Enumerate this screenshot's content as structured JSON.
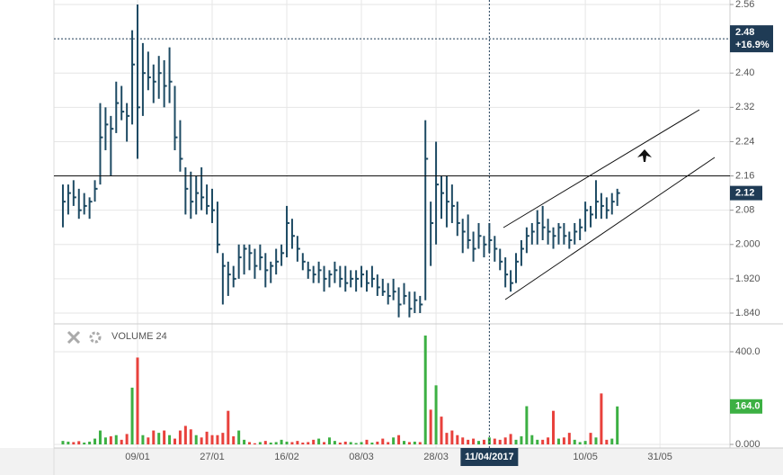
{
  "chart_data": {
    "type": "ohlc",
    "categories": [
      null,
      null,
      null,
      null,
      null,
      null,
      null,
      null,
      null,
      null,
      null,
      null,
      null,
      null,
      "09/01",
      null,
      null,
      null,
      null,
      null,
      null,
      null,
      null,
      null,
      null,
      null,
      null,
      null,
      "27/01",
      null,
      null,
      null,
      null,
      null,
      null,
      null,
      null,
      null,
      null,
      null,
      null,
      null,
      "16/02",
      null,
      null,
      null,
      null,
      null,
      null,
      null,
      null,
      null,
      null,
      null,
      null,
      null,
      "08/03",
      null,
      null,
      null,
      null,
      null,
      null,
      null,
      null,
      null,
      null,
      null,
      null,
      null,
      "28/03",
      null,
      null,
      null,
      null,
      null,
      null,
      null,
      null,
      null,
      "11/04/2017",
      null,
      null,
      null,
      null,
      null,
      null,
      null,
      null,
      null,
      null,
      null,
      null,
      null,
      null,
      null,
      null,
      null,
      "10/05",
      null,
      null,
      null,
      null,
      null,
      null,
      null,
      null,
      null,
      null,
      null,
      null,
      null,
      "31/05",
      null,
      null,
      null,
      null,
      null,
      null,
      null,
      null,
      null,
      null,
      null,
      null
    ],
    "high": [
      2.14,
      2.14,
      2.15,
      2.13,
      2.12,
      2.11,
      2.15,
      2.33,
      2.32,
      2.3,
      2.38,
      2.37,
      2.33,
      2.5,
      2.56,
      2.47,
      2.45,
      2.42,
      2.44,
      2.43,
      2.46,
      2.37,
      2.29,
      2.18,
      2.17,
      2.16,
      2.18,
      2.14,
      2.13,
      2.1,
      1.98,
      1.96,
      1.95,
      2.0,
      2.0,
      2.0,
      1.99,
      2.0,
      1.98,
      1.96,
      1.99,
      2.0,
      2.09,
      2.06,
      2.02,
      1.98,
      1.96,
      1.95,
      1.96,
      1.95,
      1.94,
      1.96,
      1.95,
      1.95,
      1.94,
      1.94,
      1.95,
      1.94,
      1.95,
      1.93,
      1.92,
      1.91,
      1.92,
      1.9,
      1.91,
      1.89,
      1.89,
      1.88,
      2.29,
      2.1,
      2.24,
      2.16,
      2.16,
      2.14,
      2.1,
      2.06,
      2.07,
      2.03,
      2.05,
      2.02,
      2.05,
      2.02,
      1.99,
      1.97,
      1.94,
      1.98,
      2.01,
      2.04,
      2.05,
      2.08,
      2.09,
      2.06,
      2.04,
      2.05,
      2.05,
      2.03,
      2.05,
      2.06,
      2.1,
      2.09,
      2.15,
      2.12,
      2.11,
      2.12,
      2.13,
      null,
      null,
      null,
      null,
      null,
      null,
      null,
      null,
      null,
      null,
      null,
      null,
      null,
      null,
      null,
      null,
      null,
      null,
      null,
      null
    ],
    "low": [
      2.04,
      2.07,
      2.09,
      2.06,
      2.07,
      2.06,
      2.1,
      2.14,
      2.22,
      2.16,
      2.26,
      2.29,
      2.24,
      2.28,
      2.2,
      2.3,
      2.36,
      2.33,
      2.34,
      2.32,
      2.33,
      2.22,
      2.17,
      2.07,
      2.06,
      2.07,
      2.08,
      2.07,
      2.05,
      1.98,
      1.86,
      1.88,
      1.9,
      1.92,
      1.93,
      1.94,
      1.92,
      1.94,
      1.9,
      1.91,
      1.93,
      1.95,
      1.97,
      1.99,
      1.96,
      1.94,
      1.92,
      1.91,
      1.91,
      1.89,
      1.9,
      1.91,
      1.9,
      1.89,
      1.9,
      1.89,
      1.9,
      1.89,
      1.9,
      1.88,
      1.88,
      1.86,
      1.87,
      1.83,
      1.86,
      1.83,
      1.84,
      1.84,
      1.87,
      1.95,
      2.0,
      2.06,
      2.04,
      2.05,
      2.02,
      1.98,
      1.99,
      1.96,
      1.99,
      1.97,
      1.98,
      1.96,
      1.94,
      1.9,
      1.89,
      1.91,
      1.95,
      1.98,
      2.0,
      2.0,
      2.01,
      2.0,
      1.99,
      2.0,
      2.0,
      1.99,
      2.0,
      2.01,
      2.03,
      2.04,
      2.06,
      2.06,
      2.06,
      2.07,
      2.09,
      null,
      null,
      null,
      null,
      null,
      null,
      null,
      null,
      null,
      null,
      null,
      null,
      null,
      null,
      null,
      null,
      null,
      null,
      null,
      null
    ],
    "close": [
      2.1,
      2.12,
      2.11,
      2.08,
      2.09,
      2.1,
      2.13,
      2.25,
      2.28,
      2.27,
      2.33,
      2.31,
      2.3,
      2.42,
      2.32,
      2.4,
      2.39,
      2.38,
      2.4,
      2.37,
      2.38,
      2.25,
      2.2,
      2.13,
      2.1,
      2.12,
      2.11,
      2.09,
      2.08,
      2.0,
      1.95,
      1.93,
      1.92,
      1.97,
      1.99,
      1.98,
      1.95,
      1.97,
      1.94,
      1.95,
      1.96,
      1.98,
      2.05,
      2.02,
      1.99,
      1.96,
      1.94,
      1.93,
      1.94,
      1.92,
      1.93,
      1.94,
      1.92,
      1.91,
      1.92,
      1.92,
      1.93,
      1.91,
      1.92,
      1.9,
      1.89,
      1.88,
      1.89,
      1.86,
      1.88,
      1.85,
      1.87,
      1.86,
      2.2,
      2.05,
      2.14,
      2.12,
      2.1,
      2.09,
      2.05,
      2.03,
      2.01,
      1.99,
      2.02,
      2.0,
      2.01,
      1.99,
      1.96,
      1.93,
      1.91,
      1.96,
      1.99,
      2.02,
      2.03,
      2.05,
      2.04,
      2.03,
      2.02,
      2.04,
      2.02,
      2.01,
      2.03,
      2.04,
      2.08,
      2.07,
      2.1,
      2.09,
      2.08,
      2.1,
      2.12,
      null,
      null,
      null,
      null,
      null,
      null,
      null,
      null,
      null,
      null,
      null,
      null,
      null,
      null,
      null,
      null,
      null,
      null,
      null,
      null
    ],
    "volume": [
      15,
      12,
      10,
      14,
      8,
      12,
      25,
      60,
      30,
      35,
      40,
      20,
      45,
      245,
      375,
      40,
      30,
      60,
      50,
      60,
      40,
      25,
      60,
      80,
      65,
      40,
      30,
      55,
      40,
      40,
      50,
      145,
      35,
      60,
      20,
      10,
      5,
      10,
      15,
      8,
      10,
      20,
      12,
      10,
      15,
      8,
      10,
      20,
      25,
      10,
      30,
      15,
      8,
      12,
      10,
      6,
      10,
      20,
      8,
      12,
      25,
      10,
      30,
      40,
      15,
      10,
      12,
      10,
      470,
      150,
      255,
      120,
      50,
      60,
      40,
      30,
      20,
      25,
      15,
      20,
      30,
      25,
      20,
      30,
      45,
      20,
      35,
      165,
      40,
      20,
      20,
      30,
      145,
      25,
      30,
      50,
      20,
      10,
      15,
      50,
      30,
      220,
      20,
      25,
      164,
      null,
      null,
      null,
      null,
      null,
      null,
      null,
      null,
      null,
      null,
      null,
      null,
      null,
      null,
      null,
      null,
      null,
      null,
      null,
      null
    ],
    "bar_color": "#1d4a63",
    "up_color": "#3cb043",
    "down_color": "#e8413c",
    "ylim": [
      1.819,
      2.5705
    ],
    "yticks": [
      2.56,
      {
        "value": 2.4,
        "label": "2.40"
      },
      2.32,
      2.24,
      2.16,
      2.08,
      {
        "value": 2.0,
        "label": "2.000"
      },
      {
        "value": 1.92,
        "label": "1.920"
      },
      {
        "value": 1.84,
        "label": "1.840"
      }
    ],
    "volume_lim": [
      -15.5,
      512.6
    ],
    "volume_ticks": [
      {
        "value": 400,
        "label": "400.0"
      },
      {
        "value": 0,
        "label": "0.000"
      }
    ],
    "volume_panel": {
      "title": "VOLUME",
      "period": 24
    },
    "last_volume": {
      "value": 164,
      "label": "164.0"
    },
    "reference": {
      "price": 2.48,
      "change": "+16.9%"
    },
    "hline": 2.16,
    "crosshair_at": 80,
    "grid": true
  }
}
